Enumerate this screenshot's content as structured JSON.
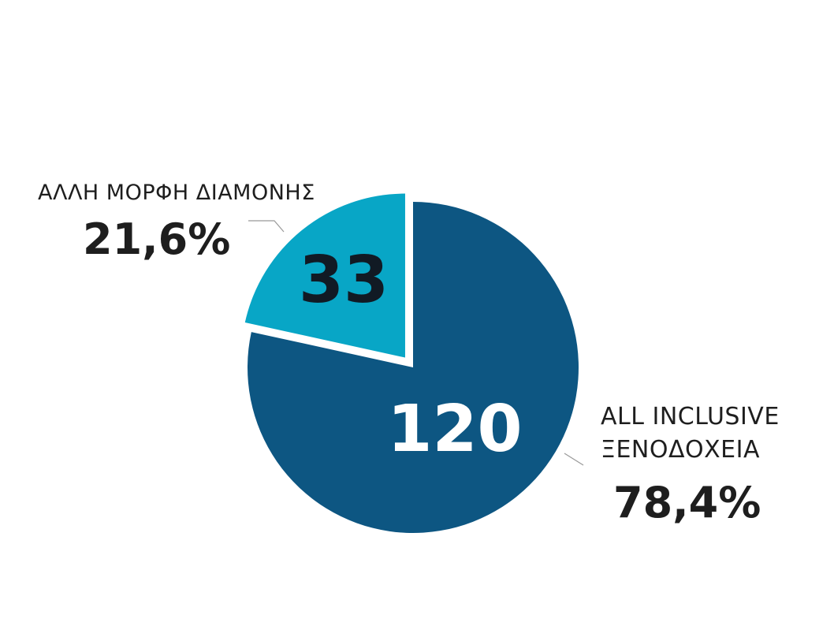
{
  "chart_data": {
    "type": "pie",
    "slices": [
      {
        "label_lines": [
          "ALL INCLUSIVE",
          "ΞΕΝΟΔΟΧΕΙΑ"
        ],
        "value": 120,
        "value_label": "120",
        "percent": 78.4,
        "percent_label": "78,4%",
        "color": "#0d5682"
      },
      {
        "label_lines": [
          "ΑΛΛΗ ΜΟΡΦΗ ΔΙΑΜΟΝΗΣ"
        ],
        "value": 33,
        "value_label": "33",
        "percent": 21.6,
        "percent_label": "21,6%",
        "color": "#08a6c6",
        "exploded": true
      }
    ],
    "start_angle_deg": 0,
    "direction": "clockwise",
    "legend": "none"
  },
  "colors": {
    "background": "#ffffff",
    "text": "#1e1e1e",
    "leader_line": "#999999"
  }
}
